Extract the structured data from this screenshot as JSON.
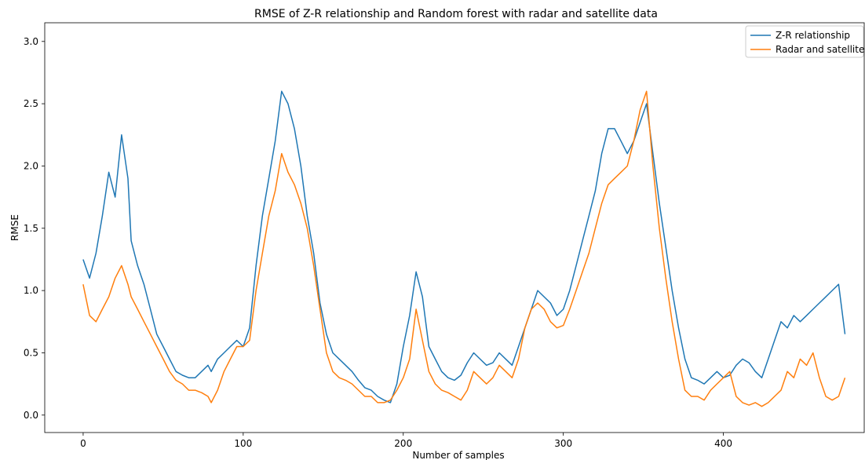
{
  "chart_data": {
    "type": "line",
    "title": "RMSE of Z-R relationship and Random forest with radar and satellite data",
    "xlabel": "Number of samples",
    "ylabel": "RMSE",
    "xlim": [
      -24,
      488
    ],
    "ylim": [
      -0.14,
      3.15
    ],
    "xticks": [
      0,
      100,
      200,
      300,
      400
    ],
    "yticks": [
      0.0,
      0.5,
      1.0,
      1.5,
      2.0,
      2.5,
      3.0
    ],
    "ytick_labels": [
      "0.0",
      "0.5",
      "1.0",
      "1.5",
      "2.0",
      "2.5",
      "3.0"
    ],
    "legend_position": "upper right",
    "grid": false,
    "series": [
      {
        "name": "Z-R relationship",
        "color": "#1f77b4",
        "x": [
          0,
          4,
          8,
          12,
          16,
          20,
          24,
          28,
          30,
          34,
          38,
          42,
          46,
          50,
          54,
          58,
          62,
          66,
          70,
          74,
          78,
          80,
          84,
          88,
          92,
          96,
          100,
          104,
          108,
          112,
          116,
          120,
          124,
          128,
          132,
          136,
          140,
          144,
          148,
          152,
          156,
          160,
          164,
          168,
          172,
          176,
          180,
          184,
          188,
          192,
          196,
          200,
          204,
          208,
          212,
          216,
          220,
          224,
          228,
          232,
          236,
          240,
          244,
          248,
          252,
          256,
          260,
          264,
          268,
          272,
          276,
          280,
          284,
          288,
          292,
          296,
          300,
          304,
          308,
          312,
          316,
          320,
          324,
          328,
          332,
          336,
          340,
          344,
          348,
          352,
          356,
          360,
          364,
          368,
          372,
          376,
          380,
          384,
          388,
          392,
          396,
          400,
          404,
          408,
          412,
          416,
          420,
          424,
          428,
          432,
          436,
          440,
          444,
          448,
          452,
          456,
          460,
          464,
          468,
          472,
          476
        ],
        "y": [
          1.25,
          1.1,
          1.3,
          1.6,
          1.95,
          1.75,
          2.25,
          1.9,
          1.4,
          1.2,
          1.05,
          0.85,
          0.65,
          0.55,
          0.45,
          0.35,
          0.32,
          0.3,
          0.3,
          0.35,
          0.4,
          0.35,
          0.45,
          0.5,
          0.55,
          0.6,
          0.55,
          0.7,
          1.2,
          1.6,
          1.9,
          2.2,
          2.6,
          2.5,
          2.3,
          2.0,
          1.6,
          1.3,
          0.9,
          0.65,
          0.5,
          0.45,
          0.4,
          0.35,
          0.28,
          0.22,
          0.2,
          0.15,
          0.12,
          0.1,
          0.25,
          0.55,
          0.8,
          1.15,
          0.95,
          0.55,
          0.45,
          0.35,
          0.3,
          0.28,
          0.32,
          0.42,
          0.5,
          0.45,
          0.4,
          0.42,
          0.5,
          0.45,
          0.4,
          0.55,
          0.7,
          0.85,
          1.0,
          0.95,
          0.9,
          0.8,
          0.85,
          1.0,
          1.2,
          1.4,
          1.6,
          1.8,
          2.1,
          2.3,
          2.3,
          2.2,
          2.1,
          2.2,
          2.35,
          2.5,
          2.1,
          1.7,
          1.35,
          1.0,
          0.7,
          0.45,
          0.3,
          0.28,
          0.25,
          0.3,
          0.35,
          0.3,
          0.32,
          0.4,
          0.45,
          0.42,
          0.35,
          0.3,
          0.45,
          0.6,
          0.75,
          0.7,
          0.8,
          0.75,
          0.8,
          0.85,
          0.9,
          0.95,
          1.0,
          1.05,
          0.65
        ]
      },
      {
        "name": "Radar and satellite",
        "color": "#ff7f0e",
        "x": [
          0,
          4,
          8,
          12,
          16,
          20,
          24,
          28,
          30,
          34,
          38,
          42,
          46,
          50,
          54,
          58,
          62,
          66,
          70,
          74,
          78,
          80,
          84,
          88,
          92,
          96,
          100,
          104,
          108,
          112,
          116,
          120,
          124,
          128,
          132,
          136,
          140,
          144,
          148,
          152,
          156,
          160,
          164,
          168,
          172,
          176,
          180,
          184,
          188,
          192,
          196,
          200,
          204,
          208,
          212,
          216,
          220,
          224,
          228,
          232,
          236,
          240,
          244,
          248,
          252,
          256,
          260,
          264,
          268,
          272,
          276,
          280,
          284,
          288,
          292,
          296,
          300,
          304,
          308,
          312,
          316,
          320,
          324,
          328,
          332,
          336,
          340,
          344,
          348,
          352,
          356,
          360,
          364,
          368,
          372,
          376,
          380,
          384,
          388,
          392,
          396,
          400,
          404,
          408,
          412,
          416,
          420,
          424,
          428,
          432,
          436,
          440,
          444,
          448,
          452,
          456,
          460,
          464,
          468,
          472,
          476
        ],
        "y": [
          1.05,
          0.8,
          0.75,
          0.85,
          0.95,
          1.1,
          1.2,
          1.05,
          0.95,
          0.85,
          0.75,
          0.65,
          0.55,
          0.45,
          0.35,
          0.28,
          0.25,
          0.2,
          0.2,
          0.18,
          0.15,
          0.1,
          0.2,
          0.35,
          0.45,
          0.55,
          0.55,
          0.6,
          1.0,
          1.3,
          1.6,
          1.8,
          2.1,
          1.95,
          1.85,
          1.7,
          1.5,
          1.2,
          0.85,
          0.5,
          0.35,
          0.3,
          0.28,
          0.25,
          0.2,
          0.15,
          0.15,
          0.1,
          0.1,
          0.12,
          0.2,
          0.3,
          0.45,
          0.85,
          0.6,
          0.35,
          0.25,
          0.2,
          0.18,
          0.15,
          0.12,
          0.2,
          0.35,
          0.3,
          0.25,
          0.3,
          0.4,
          0.35,
          0.3,
          0.45,
          0.7,
          0.85,
          0.9,
          0.85,
          0.75,
          0.7,
          0.72,
          0.85,
          1.0,
          1.15,
          1.3,
          1.5,
          1.7,
          1.85,
          1.9,
          1.95,
          2.0,
          2.2,
          2.45,
          2.6,
          2.0,
          1.5,
          1.1,
          0.75,
          0.45,
          0.2,
          0.15,
          0.15,
          0.12,
          0.2,
          0.25,
          0.3,
          0.35,
          0.15,
          0.1,
          0.08,
          0.1,
          0.07,
          0.1,
          0.15,
          0.2,
          0.35,
          0.3,
          0.45,
          0.4,
          0.5,
          0.3,
          0.15,
          0.12,
          0.15,
          0.3
        ]
      }
    ]
  }
}
